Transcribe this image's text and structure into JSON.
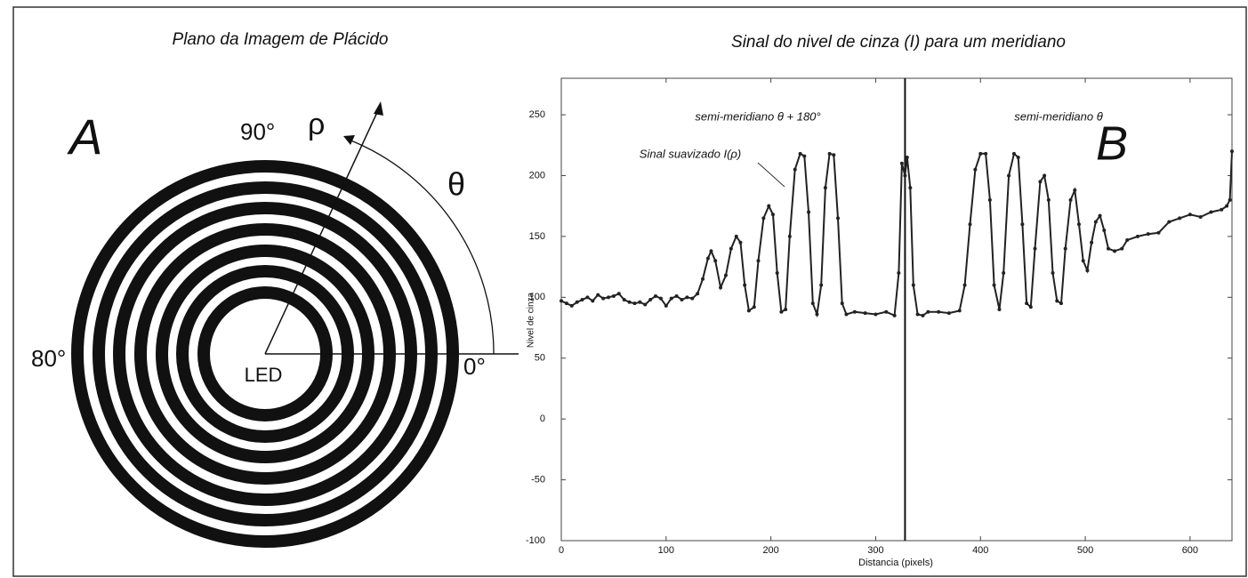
{
  "diagram": {
    "title": "Plano da Imagem de Plácido",
    "panel_label": "A",
    "label_90": "90°",
    "label_180": "80°",
    "label_0": "0°",
    "rho": "ρ",
    "theta": "θ",
    "center_label": "LED"
  },
  "chart_data": {
    "type": "line",
    "title": "Sinal do nivel de cinza (I) para um meridiano",
    "x_label": "Distancia (pixels)",
    "y_label": "Nivel de cinza",
    "panel_label": "B",
    "annotations": [
      "semi-meridiano θ + 180°",
      "semi-meridiano θ",
      "Sinal suavizado I(ρ)"
    ],
    "color": "#222222",
    "vline": 328,
    "xlim": [
      0,
      640
    ],
    "ylim": [
      -100,
      280
    ],
    "xticks": [
      0,
      100,
      200,
      300,
      400,
      500,
      600
    ],
    "yticks": [
      -100,
      -50,
      0,
      50,
      100,
      150,
      200,
      250
    ],
    "x": [
      0,
      5,
      10,
      15,
      20,
      25,
      30,
      35,
      40,
      45,
      50,
      55,
      60,
      65,
      70,
      75,
      80,
      85,
      90,
      95,
      100,
      105,
      110,
      115,
      120,
      125,
      130,
      135,
      140,
      143,
      147,
      152,
      157,
      162,
      167,
      171,
      175,
      179,
      184,
      188,
      193,
      198,
      202,
      206,
      210,
      214,
      218,
      223,
      228,
      232,
      236,
      240,
      244,
      248,
      252,
      256,
      260,
      264,
      268,
      272,
      280,
      290,
      300,
      310,
      318,
      322,
      325,
      328,
      330,
      333,
      336,
      340,
      345,
      350,
      360,
      370,
      380,
      385,
      390,
      395,
      400,
      405,
      409,
      413,
      418,
      422,
      427,
      432,
      436,
      440,
      444,
      448,
      452,
      457,
      461,
      465,
      469,
      473,
      477,
      481,
      486,
      490,
      494,
      498,
      502,
      506,
      510,
      514,
      518,
      522,
      528,
      535,
      540,
      550,
      560,
      570,
      580,
      590,
      600,
      610,
      620,
      630,
      635,
      638,
      640
    ],
    "values": [
      97,
      95,
      93,
      96,
      98,
      100,
      97,
      102,
      99,
      100,
      101,
      103,
      98,
      96,
      95,
      96,
      94,
      98,
      101,
      99,
      93,
      99,
      101,
      98,
      100,
      99,
      103,
      115,
      132,
      138,
      130,
      108,
      118,
      140,
      150,
      145,
      110,
      89,
      92,
      130,
      165,
      175,
      168,
      120,
      88,
      90,
      150,
      205,
      218,
      216,
      170,
      95,
      86,
      110,
      190,
      218,
      217,
      165,
      95,
      86,
      88,
      87,
      86,
      88,
      85,
      120,
      210,
      200,
      215,
      190,
      110,
      86,
      85,
      88,
      88,
      87,
      89,
      110,
      160,
      205,
      218,
      218,
      180,
      110,
      90,
      120,
      200,
      218,
      215,
      160,
      95,
      92,
      140,
      195,
      200,
      180,
      120,
      97,
      95,
      140,
      180,
      188,
      160,
      130,
      122,
      145,
      162,
      167,
      155,
      140,
      138,
      140,
      147,
      150,
      152,
      153,
      162,
      165,
      168,
      166,
      170,
      172,
      175,
      180,
      220
    ]
  }
}
